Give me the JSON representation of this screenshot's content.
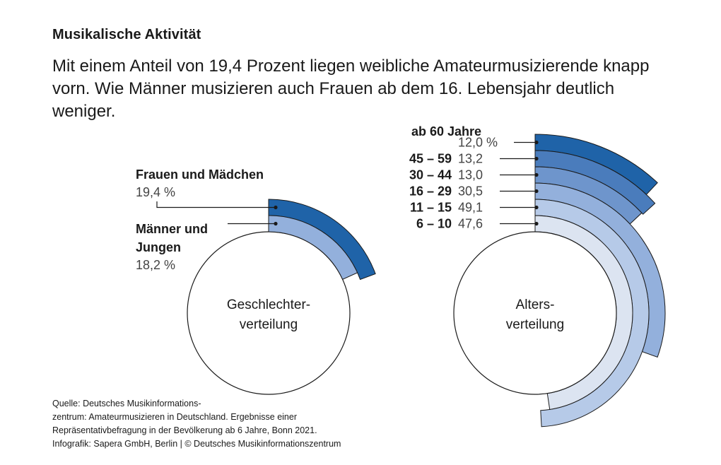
{
  "header": {
    "title": "Musikalische Aktivität",
    "subtitle": "Mit einem Anteil von 19,4 Prozent liegen weibliche Amateurmusizierende knapp vorn. Wie Männer musizieren auch Frauen ab dem 16. Lebensjahr deutlich weniger."
  },
  "colors": {
    "dark": "#1f63a8",
    "mid_dark": "#4a7cbc",
    "mid": "#6e95cc",
    "light_mid": "#93b0dc",
    "light": "#b6cae8",
    "lightest": "#dce4f1"
  },
  "chart_data": [
    {
      "type": "pie",
      "title": "Geschlechterverteilung",
      "center_label_lines": [
        "Geschlechter-",
        "verteilung"
      ],
      "unit": "%",
      "series": [
        {
          "name": "Frauen und Mädchen",
          "label_lines": [
            "Frauen und Mädchen"
          ],
          "value": 19.4,
          "value_label": "19,4 %"
        },
        {
          "name": "Männer und Jungen",
          "label_lines": [
            "Männer und",
            "Jungen"
          ],
          "value": 18.2,
          "value_label": "18,2 %"
        }
      ]
    },
    {
      "type": "pie",
      "title": "Altersverteilung",
      "center_label_lines": [
        "Alters-",
        "verteilung"
      ],
      "unit": "%",
      "header_label": "ab 60 Jahre",
      "series": [
        {
          "name": "ab 60 Jahre",
          "category": "",
          "value": 12.0,
          "value_label": "12,0 %"
        },
        {
          "name": "45 – 59",
          "category": "45 – 59",
          "value": 13.2,
          "value_label": "13,2"
        },
        {
          "name": "30 – 44",
          "category": "30 – 44",
          "value": 13.0,
          "value_label": "13,0"
        },
        {
          "name": "16 – 29",
          "category": "16 – 29",
          "value": 30.5,
          "value_label": "30,5"
        },
        {
          "name": "11 – 15",
          "category": "11 – 15",
          "value": 49.1,
          "value_label": "49,1"
        },
        {
          "name": "6 – 10",
          "category": "6 – 10",
          "value": 47.6,
          "value_label": "47,6"
        }
      ]
    }
  ],
  "footer": {
    "source_lines": [
      "Quelle: Deutsches Musikinformations-",
      "zentrum: Amateurmusizieren in Deutschland. Ergebnisse einer",
      "Repräsentativbefragung in der Bevölkerung ab 6 Jahre, Bonn 2021.",
      "Infografik: Sapera GmbH, Berlin  |  © Deutsches Musikinformationszentrum"
    ]
  }
}
